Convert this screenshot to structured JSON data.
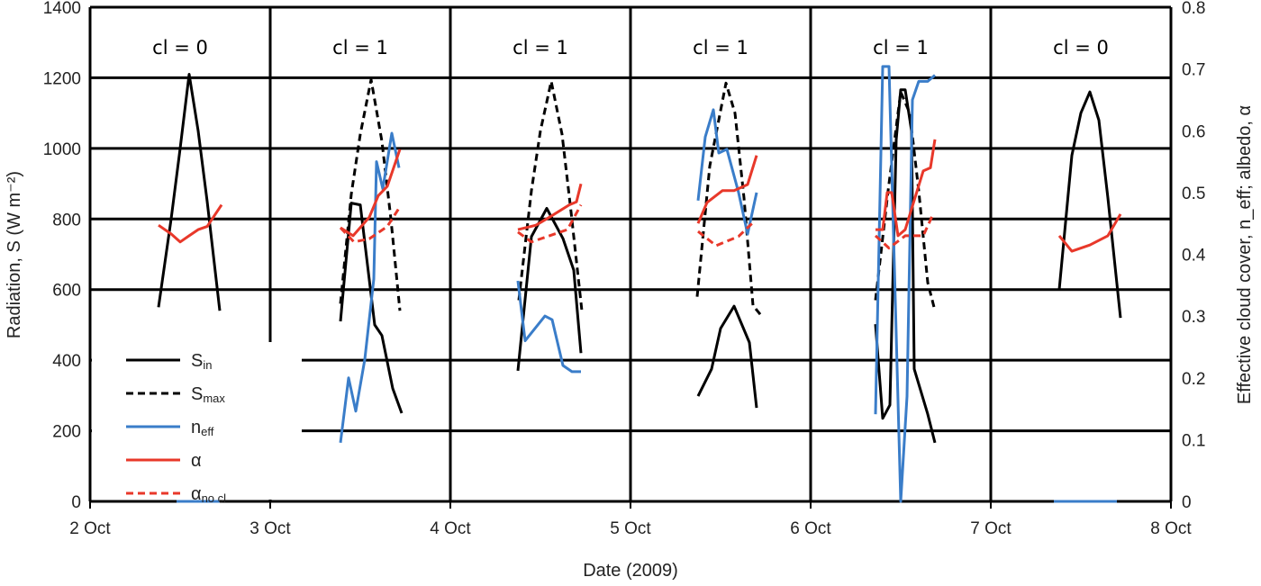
{
  "chart_data": {
    "type": "line",
    "xlabel": "Date (2009)",
    "ylabel": "Radiation, S (W m⁻²)",
    "ylabel_right": "Effective cloud cover, n_eff; albedo, α",
    "xlim": [
      2,
      8
    ],
    "ylim": [
      0,
      1400
    ],
    "ylim_right": [
      0,
      0.8
    ],
    "xticks": [
      2,
      3,
      4,
      5,
      6,
      7,
      8
    ],
    "xtick_labels": [
      "2 Oct",
      "3 Oct",
      "4 Oct",
      "5 Oct",
      "6 Oct",
      "7 Oct",
      "8 Oct"
    ],
    "yticks": [
      0,
      200,
      400,
      600,
      800,
      1000,
      1200,
      1400
    ],
    "yticks_right": [
      "0",
      "0.1",
      "0.2",
      "0.3",
      "0.4",
      "0.5",
      "0.6",
      "0.7",
      "0.8"
    ],
    "grid": true,
    "legend_position": "bottom-left",
    "annotations": [
      {
        "day": 2.5,
        "text": "cl = 0"
      },
      {
        "day": 3.5,
        "text": "cl = 1"
      },
      {
        "day": 4.5,
        "text": "cl = 1"
      },
      {
        "day": 5.5,
        "text": "cl = 1"
      },
      {
        "day": 6.5,
        "text": "cl = 1"
      },
      {
        "day": 7.5,
        "text": "cl = 0"
      }
    ],
    "series": [
      {
        "name": "S_in",
        "label": "S",
        "sub": "in",
        "axis": "left",
        "color": "#000000",
        "dash": false,
        "segments": [
          [
            [
              2.38,
              550
            ],
            [
              2.45,
              800
            ],
            [
              2.5,
              1000
            ],
            [
              2.55,
              1210
            ],
            [
              2.6,
              1050
            ],
            [
              2.65,
              850
            ],
            [
              2.72,
              540
            ]
          ],
          [
            [
              3.39,
              510
            ],
            [
              3.45,
              845
            ],
            [
              3.5,
              840
            ],
            [
              3.58,
              500
            ],
            [
              3.62,
              470
            ],
            [
              3.68,
              320
            ],
            [
              3.73,
              250
            ]
          ],
          [
            [
              4.375,
              370
            ],
            [
              4.45,
              750
            ],
            [
              4.535,
              830
            ],
            [
              4.625,
              745
            ],
            [
              4.685,
              655
            ],
            [
              4.725,
              420
            ]
          ],
          [
            [
              5.375,
              298
            ],
            [
              5.45,
              375
            ],
            [
              5.5,
              490
            ],
            [
              5.575,
              553
            ],
            [
              5.66,
              450
            ],
            [
              5.7,
              265
            ]
          ],
          [
            [
              6.36,
              502
            ],
            [
              6.4,
              235
            ],
            [
              6.44,
              273
            ],
            [
              6.475,
              1025
            ],
            [
              6.5,
              1166
            ],
            [
              6.525,
              1166
            ],
            [
              6.56,
              1050
            ],
            [
              6.575,
              375
            ],
            [
              6.65,
              247
            ],
            [
              6.69,
              166
            ]
          ],
          [
            [
              7.38,
              600
            ],
            [
              7.45,
              980
            ],
            [
              7.5,
              1100
            ],
            [
              7.55,
              1160
            ],
            [
              7.6,
              1080
            ],
            [
              7.65,
              860
            ],
            [
              7.72,
              520
            ]
          ]
        ]
      },
      {
        "name": "S_max",
        "label": "S",
        "sub": "max",
        "axis": "left",
        "color": "#000000",
        "dash": true,
        "segments": [
          [
            [
              3.39,
              560
            ],
            [
              3.45,
              870
            ],
            [
              3.5,
              1040
            ],
            [
              3.56,
              1195
            ],
            [
              3.62,
              1020
            ],
            [
              3.67,
              800
            ],
            [
              3.72,
              540
            ]
          ],
          [
            [
              4.38,
              570
            ],
            [
              4.45,
              880
            ],
            [
              4.5,
              1050
            ],
            [
              4.56,
              1190
            ],
            [
              4.62,
              1040
            ],
            [
              4.67,
              820
            ],
            [
              4.73,
              540
            ]
          ],
          [
            [
              5.37,
              580
            ],
            [
              5.44,
              950
            ],
            [
              5.53,
              1185
            ],
            [
              5.58,
              1100
            ],
            [
              5.63,
              860
            ],
            [
              5.68,
              555
            ],
            [
              5.72,
              530
            ]
          ],
          [
            [
              6.36,
              570
            ],
            [
              6.43,
              880
            ],
            [
              6.5,
              1160
            ],
            [
              6.55,
              1100
            ],
            [
              6.6,
              880
            ],
            [
              6.65,
              620
            ],
            [
              6.69,
              540
            ]
          ]
        ]
      },
      {
        "name": "n_eff",
        "label": "n",
        "sub": "eff",
        "axis": "right",
        "color": "#3a7dc9",
        "dash": false,
        "segments": [
          [
            [
              2.48,
              0
            ],
            [
              2.72,
              0
            ]
          ],
          [
            [
              3.39,
              0.095
            ],
            [
              3.435,
              0.2
            ],
            [
              3.475,
              0.146
            ],
            [
              3.525,
              0.23
            ],
            [
              3.575,
              0.36
            ],
            [
              3.59,
              0.55
            ],
            [
              3.625,
              0.506
            ],
            [
              3.675,
              0.596
            ],
            [
              3.715,
              0.54
            ]
          ],
          [
            [
              4.375,
              0.357
            ],
            [
              4.415,
              0.26
            ],
            [
              4.525,
              0.3
            ],
            [
              4.565,
              0.294
            ],
            [
              4.625,
              0.22
            ],
            [
              4.675,
              0.21
            ],
            [
              4.725,
              0.21
            ]
          ],
          [
            [
              5.375,
              0.487
            ],
            [
              5.415,
              0.59
            ],
            [
              5.46,
              0.634
            ],
            [
              5.49,
              0.564
            ],
            [
              5.535,
              0.57
            ],
            [
              5.6,
              0.5
            ],
            [
              5.65,
              0.433
            ],
            [
              5.7,
              0.5
            ]
          ],
          [
            [
              6.36,
              0.141
            ],
            [
              6.4,
              0.704
            ],
            [
              6.435,
              0.704
            ],
            [
              6.5,
              0
            ],
            [
              6.535,
              0.17
            ],
            [
              6.565,
              0.65
            ],
            [
              6.6,
              0.68
            ],
            [
              6.65,
              0.68
            ],
            [
              6.69,
              0.69
            ]
          ],
          [
            [
              7.35,
              0
            ],
            [
              7.7,
              0
            ]
          ]
        ]
      },
      {
        "name": "alpha",
        "label": "α",
        "sub": "",
        "axis": "right",
        "color": "#e8382a",
        "dash": false,
        "segments": [
          [
            [
              2.38,
              0.447
            ],
            [
              2.45,
              0.433
            ],
            [
              2.5,
              0.42
            ],
            [
              2.55,
              0.43
            ],
            [
              2.6,
              0.44
            ],
            [
              2.65,
              0.445
            ],
            [
              2.73,
              0.48
            ]
          ],
          [
            [
              3.39,
              0.443
            ],
            [
              3.46,
              0.43
            ],
            [
              3.55,
              0.46
            ],
            [
              3.6,
              0.495
            ],
            [
              3.65,
              0.51
            ],
            [
              3.72,
              0.57
            ]
          ],
          [
            [
              4.375,
              0.44
            ],
            [
              4.475,
              0.447
            ],
            [
              4.55,
              0.46
            ],
            [
              4.66,
              0.48
            ],
            [
              4.7,
              0.485
            ],
            [
              4.725,
              0.514
            ]
          ],
          [
            [
              5.375,
              0.45
            ],
            [
              5.425,
              0.484
            ],
            [
              5.51,
              0.503
            ],
            [
              5.575,
              0.503
            ],
            [
              5.65,
              0.513
            ],
            [
              5.7,
              0.56
            ]
          ],
          [
            [
              6.36,
              0.44
            ],
            [
              6.4,
              0.44
            ],
            [
              6.425,
              0.5
            ],
            [
              6.45,
              0.5
            ],
            [
              6.485,
              0.43
            ],
            [
              6.525,
              0.44
            ],
            [
              6.625,
              0.535
            ],
            [
              6.665,
              0.54
            ],
            [
              6.69,
              0.586
            ]
          ],
          [
            [
              7.38,
              0.43
            ],
            [
              7.45,
              0.405
            ],
            [
              7.55,
              0.415
            ],
            [
              7.65,
              0.43
            ],
            [
              7.72,
              0.465
            ]
          ]
        ]
      },
      {
        "name": "alpha_no_cl",
        "label": "α",
        "sub": "no cl",
        "axis": "right",
        "color": "#e8382a",
        "dash": true,
        "segments": [
          [
            [
              3.39,
              0.443
            ],
            [
              3.465,
              0.42
            ],
            [
              3.55,
              0.425
            ],
            [
              3.65,
              0.445
            ],
            [
              3.72,
              0.477
            ]
          ],
          [
            [
              4.375,
              0.436
            ],
            [
              4.45,
              0.42
            ],
            [
              4.55,
              0.43
            ],
            [
              4.65,
              0.44
            ],
            [
              4.725,
              0.48
            ]
          ],
          [
            [
              5.375,
              0.437
            ],
            [
              5.475,
              0.414
            ],
            [
              5.6,
              0.429
            ],
            [
              5.675,
              0.45
            ]
          ],
          [
            [
              6.36,
              0.43
            ],
            [
              6.435,
              0.41
            ],
            [
              6.525,
              0.43
            ],
            [
              6.625,
              0.43
            ],
            [
              6.675,
              0.462
            ]
          ]
        ]
      }
    ]
  }
}
